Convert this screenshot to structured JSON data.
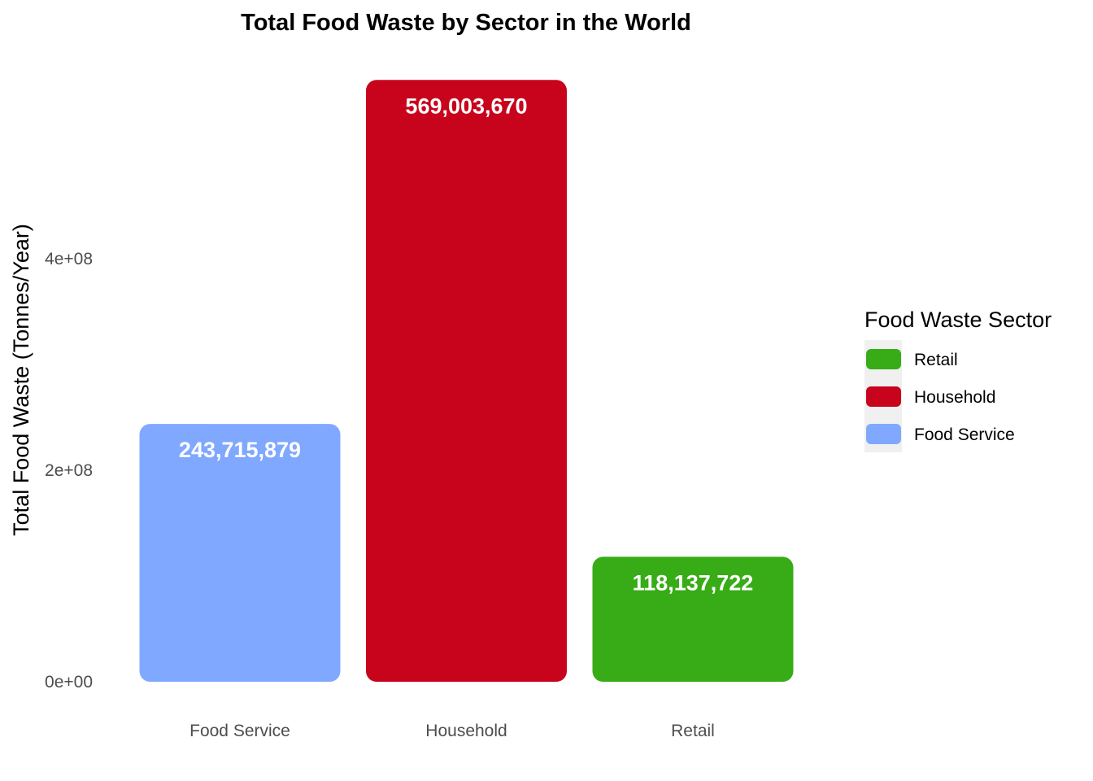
{
  "chart_data": {
    "type": "bar",
    "title": "Total Food Waste by Sector in the World",
    "xlabel": "",
    "ylabel": "Total Food Waste (Tonnes/Year)",
    "categories": [
      "Food Service",
      "Household",
      "Retail"
    ],
    "values": [
      243715879,
      569003670,
      118137722
    ],
    "value_labels": [
      "243,715,879",
      "569,003,670",
      "118,137,722"
    ],
    "colors": [
      "#80A8FF",
      "#C8041C",
      "#37AC17"
    ],
    "ylim": [
      0,
      600000000
    ],
    "yticks": [
      0,
      200000000,
      400000000
    ],
    "ytick_labels": [
      "0e+00",
      "2e+08",
      "4e+08"
    ],
    "grid": false,
    "legend": {
      "title": "Food Waste Sector",
      "placement": "right",
      "items": [
        {
          "label": "Retail",
          "color": "#37AC17"
        },
        {
          "label": "Household",
          "color": "#C8041C"
        },
        {
          "label": "Food Service",
          "color": "#80A8FF"
        }
      ]
    }
  }
}
